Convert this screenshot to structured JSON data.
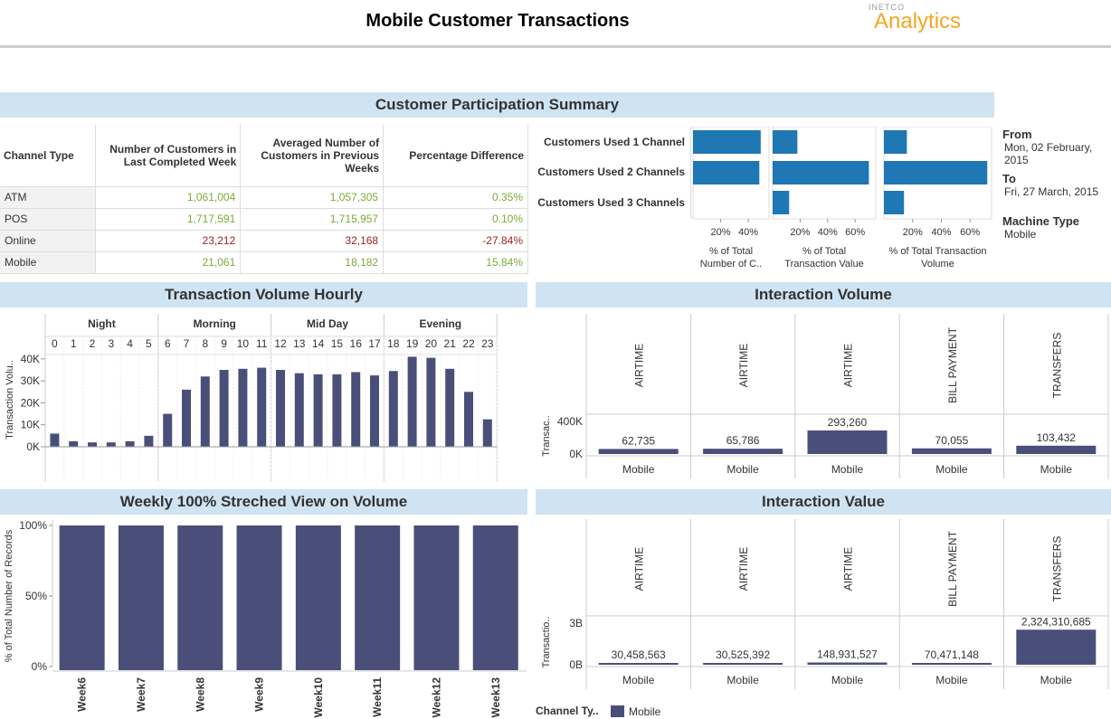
{
  "header": {
    "title": "Mobile Customer Transactions",
    "logo_small": "INETCO",
    "logo_text": "Analytics"
  },
  "summary": {
    "title": "Customer Participation Summary",
    "columns": [
      "Channel Type",
      "Number of Customers in Last Completed Week",
      "Averaged Number of Customers in Previous Weeks",
      "Percentage Difference"
    ],
    "rows": [
      {
        "channel": "ATM",
        "last": "1,061,004",
        "avg": "1,057,305",
        "diff": "0.35%",
        "status": "pos"
      },
      {
        "channel": "POS",
        "last": "1,717,591",
        "avg": "1,715,957",
        "diff": "0.10%",
        "status": "pos"
      },
      {
        "channel": "Online",
        "last": "23,212",
        "avg": "32,168",
        "diff": "-27.84%",
        "status": "neg"
      },
      {
        "channel": "Mobile",
        "last": "21,061",
        "avg": "18,182",
        "diff": "15.84%",
        "status": "pos"
      }
    ],
    "colors": {
      "positive": "#7aab39",
      "negative": "#9b1c1c",
      "bar": "#1f77b4"
    }
  },
  "channels_used": {
    "labels": [
      "Customers Used 1 Channel",
      "Customers Used 2 Channels",
      "Customers Used 3 Channels"
    ],
    "panels": [
      {
        "axis_title": "% of Total Number of C..",
        "ticks": [
          "20%",
          "40%"
        ]
      },
      {
        "axis_title": "% of Total Transaction Value",
        "ticks": [
          "20%",
          "40%",
          "60%"
        ]
      },
      {
        "axis_title": "% of Total Transaction Volume",
        "ticks": [
          "20%",
          "40%",
          "60%"
        ]
      }
    ]
  },
  "filters": {
    "from_label": "From",
    "from_value": "Mon, 02 February, 2015",
    "to_label": "To",
    "to_value": "Fri, 27 March, 2015",
    "machine_label": "Machine Type",
    "machine_value": "Mobile"
  },
  "hourly": {
    "title": "Transaction Volume Hourly",
    "ylabel": "Transaction Volu..",
    "groups": [
      "Night",
      "Morning",
      "Mid Day",
      "Evening"
    ],
    "yticks": [
      "40K",
      "30K",
      "20K",
      "10K",
      "0K"
    ]
  },
  "interaction_volume": {
    "title": "Interaction Volume",
    "ylabel": "Transac..",
    "yticks": [
      "400K",
      "0K"
    ],
    "x_label": "Mobile"
  },
  "weekly": {
    "title": "Weekly 100% Streched View on Volume",
    "ylabel": "% of Total Number of Records",
    "yticks": [
      "100%",
      "50%",
      "0%"
    ]
  },
  "interaction_value": {
    "title": "Interaction Value",
    "ylabel": "Transactio..",
    "yticks": [
      "3B",
      "0B"
    ],
    "x_label": "Mobile"
  },
  "legend": {
    "title": "Channel Ty..",
    "item": "Mobile",
    "color": "#4a4f7a"
  },
  "chart_data": [
    {
      "type": "bar",
      "title": "",
      "xlabel": "",
      "ylabel": "% of Total Number of C..",
      "categories": [
        "Customers Used 1 Channel",
        "Customers Used 2 Channels",
        "Customers Used 3 Channels"
      ],
      "values": [
        49,
        48,
        0
      ],
      "xlim": [
        0,
        55
      ]
    },
    {
      "type": "bar",
      "title": "",
      "xlabel": "",
      "ylabel": "% of Total Transaction Value",
      "categories": [
        "Customers Used 1 Channel",
        "Customers Used 2 Channels",
        "Customers Used 3 Channels"
      ],
      "values": [
        18,
        70,
        12
      ],
      "xlim": [
        0,
        75
      ]
    },
    {
      "type": "bar",
      "title": "",
      "xlabel": "",
      "ylabel": "% of Total Transaction Volume",
      "categories": [
        "Customers Used 1 Channel",
        "Customers Used 2 Channels",
        "Customers Used 3 Channels"
      ],
      "values": [
        16,
        72,
        14
      ],
      "xlim": [
        0,
        75
      ]
    },
    {
      "type": "bar",
      "title": "Transaction Volume Hourly",
      "ylabel": "Transaction Volu..",
      "categories": [
        "0",
        "1",
        "2",
        "3",
        "4",
        "5",
        "6",
        "7",
        "8",
        "9",
        "10",
        "11",
        "12",
        "13",
        "14",
        "15",
        "16",
        "17",
        "18",
        "19",
        "20",
        "21",
        "22",
        "23"
      ],
      "values": [
        6000,
        2500,
        2000,
        2000,
        2500,
        5000,
        15000,
        26000,
        32000,
        35000,
        35500,
        36000,
        35000,
        33500,
        33000,
        33000,
        34000,
        32500,
        34500,
        41000,
        40500,
        35500,
        25000,
        12500
      ],
      "ylim": [
        0,
        42000
      ]
    },
    {
      "type": "bar",
      "title": "Interaction Volume",
      "ylabel": "Transac..",
      "categories": [
        "AIRTIME",
        "AIRTIME",
        "AIRTIME",
        "BILL PAYMENT",
        "TRANSFERS"
      ],
      "values": [
        62735,
        65786,
        293260,
        70055,
        103432
      ],
      "value_labels": [
        "62,735",
        "65,786",
        "293,260",
        "70,055",
        "103,432"
      ],
      "ylim": [
        0,
        450000
      ]
    },
    {
      "type": "bar",
      "title": "Weekly 100% Streched View on Volume",
      "ylabel": "% of Total Number of Records",
      "categories": [
        "Week6",
        "Week7",
        "Week8",
        "Week9",
        "Week10",
        "Week11",
        "Week12",
        "Week13"
      ],
      "values": [
        100,
        100,
        100,
        100,
        100,
        100,
        100,
        100
      ],
      "ylim": [
        0,
        100
      ]
    },
    {
      "type": "bar",
      "title": "Interaction Value",
      "ylabel": "Transactio..",
      "categories": [
        "AIRTIME",
        "AIRTIME",
        "AIRTIME",
        "BILL PAYMENT",
        "TRANSFERS"
      ],
      "values": [
        30458563,
        30525392,
        148931527,
        70471148,
        2324310685
      ],
      "value_labels": [
        "30,458,563",
        "30,525,392",
        "148,931,527",
        "70,471,148",
        "2,324,310,685"
      ],
      "ylim": [
        0,
        3000000000
      ]
    }
  ]
}
